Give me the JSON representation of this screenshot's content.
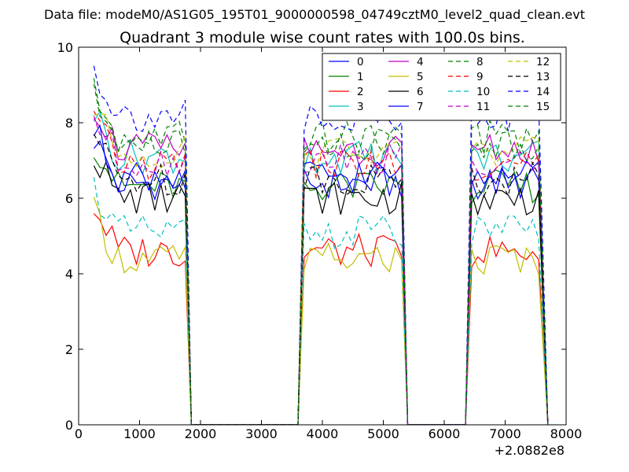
{
  "chart_data": {
    "type": "line",
    "header": "Data file: modeM0/AS1G05_195T01_9000000598_04749cztM0_level2_quad_clean.evt",
    "title": "Quadrant 3 module wise count rates with 100.0s bins.",
    "xlabel": "",
    "ylabel": "",
    "x_offset_label": "+2.0882e8",
    "xlim": [
      0,
      8000
    ],
    "ylim": [
      0,
      10
    ],
    "x_ticks": [
      0,
      1000,
      2000,
      3000,
      4000,
      5000,
      6000,
      7000,
      8000
    ],
    "y_ticks": [
      0,
      2,
      4,
      6,
      8,
      10
    ],
    "legend_position": "top-right",
    "segments": [
      [
        250,
        1750
      ],
      [
        3700,
        5300
      ],
      [
        6450,
        7600
      ]
    ],
    "series": [
      {
        "name": "0",
        "color": "#0000ff",
        "dashed": false,
        "level": 6.4
      },
      {
        "name": "1",
        "color": "#008000",
        "dashed": false,
        "level": 6.3
      },
      {
        "name": "2",
        "color": "#ff0000",
        "dashed": false,
        "level": 4.6
      },
      {
        "name": "3",
        "color": "#00bfbf",
        "dashed": false,
        "level": 7.1
      },
      {
        "name": "4",
        "color": "#bf00bf",
        "dashed": false,
        "level": 7.3
      },
      {
        "name": "5",
        "color": "#bfbf00",
        "dashed": false,
        "level": 4.4
      },
      {
        "name": "6",
        "color": "#000000",
        "dashed": false,
        "level": 6.0
      },
      {
        "name": "7",
        "color": "#0000ff",
        "dashed": false,
        "level": 6.6
      },
      {
        "name": "8",
        "color": "#008000",
        "dashed": true,
        "level": 7.6
      },
      {
        "name": "9",
        "color": "#ff0000",
        "dashed": true,
        "level": 6.9
      },
      {
        "name": "10",
        "color": "#00bfbf",
        "dashed": true,
        "level": 5.1
      },
      {
        "name": "11",
        "color": "#bf00bf",
        "dashed": true,
        "level": 7.0
      },
      {
        "name": "12",
        "color": "#bfbf00",
        "dashed": true,
        "level": 7.2
      },
      {
        "name": "13",
        "color": "#000000",
        "dashed": true,
        "level": 6.5
      },
      {
        "name": "14",
        "color": "#0000ff",
        "dashed": true,
        "level": 8.2
      },
      {
        "name": "15",
        "color": "#008000",
        "dashed": true,
        "level": 7.4
      }
    ]
  }
}
